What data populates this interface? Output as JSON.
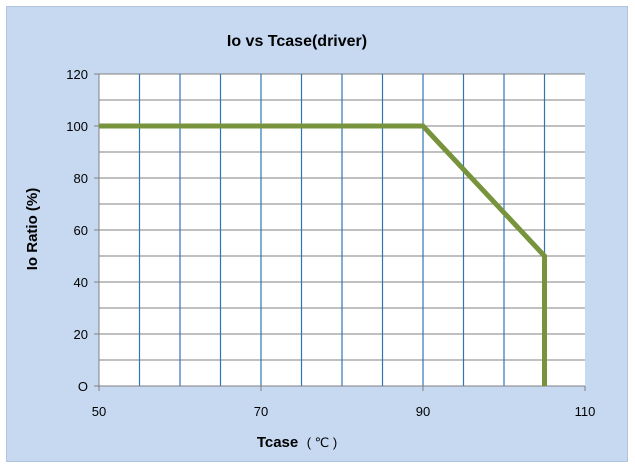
{
  "chart_data": {
    "type": "line",
    "title": "Io vs Tcase(driver)",
    "xlabel": "Tcase",
    "xlabel_unit": "( ℃ )",
    "ylabel": "Io Ratio (%)",
    "xlim": [
      50,
      110
    ],
    "ylim": [
      0,
      120
    ],
    "x_ticks": [
      50,
      70,
      90,
      110
    ],
    "x_tick_labels": [
      "50",
      "70",
      "90",
      "110"
    ],
    "y_ticks": [
      0,
      20,
      40,
      60,
      80,
      100,
      120
    ],
    "y_tick_labels": [
      "O",
      "20",
      "40",
      "60",
      "80",
      "100",
      "120"
    ],
    "x_minor_gridlines": [
      55,
      60,
      65,
      75,
      80,
      85,
      95,
      100,
      105
    ],
    "y_minor_gridlines": [
      10,
      30,
      50,
      70,
      90,
      110
    ],
    "grid": true,
    "series": [
      {
        "x": [
          50,
          90,
          105,
          105
        ],
        "y": [
          100,
          100,
          50,
          0
        ],
        "color": "#77933c"
      }
    ],
    "colors": {
      "background": "#c6d9f1",
      "plot_area": "#ffffff",
      "vertical_grid": "#2e75b6",
      "horizontal_grid": "#808080"
    }
  }
}
